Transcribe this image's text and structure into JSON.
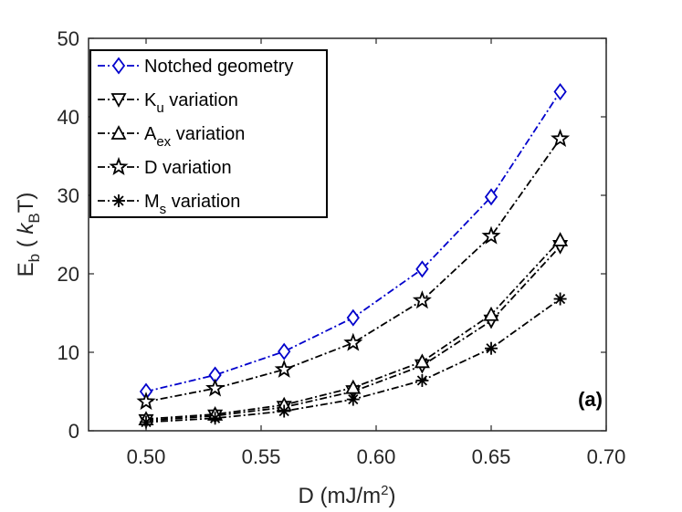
{
  "chart_data": {
    "type": "line",
    "x": [
      0.5,
      0.53,
      0.56,
      0.59,
      0.62,
      0.65,
      0.68
    ],
    "xlim": [
      0.475,
      0.7
    ],
    "ylim": [
      0,
      50
    ],
    "xticks": [
      "0.50",
      "0.55",
      "0.60",
      "0.65",
      "0.70"
    ],
    "xtick_values": [
      0.5,
      0.55,
      0.6,
      0.65,
      0.7
    ],
    "yticks": [
      "0",
      "10",
      "20",
      "30",
      "40",
      "50"
    ],
    "ytick_values": [
      0,
      10,
      20,
      30,
      40,
      50
    ],
    "xlabel": {
      "main": "D (mJ/m",
      "sup": "2",
      "end": ")"
    },
    "ylabel": {
      "main": "E",
      "sub": "b",
      "mid": " ( ",
      "italic": "k",
      "sub2": "B",
      "end": "T)"
    },
    "grid": false,
    "legend_position": "top-left",
    "panel_label": "(a)",
    "series": [
      {
        "name": "Notched geometry",
        "label_main": "Notched geometry",
        "label_sub": "",
        "label_rest": "",
        "marker": "diamond",
        "color": "#0000cc",
        "values": [
          5.0,
          7.1,
          10.1,
          14.4,
          20.6,
          29.8,
          43.2
        ]
      },
      {
        "name": "K_u variation",
        "label_main": "K",
        "label_sub": "u",
        "label_rest": " variation",
        "marker": "triangle-down",
        "color": "#000000",
        "values": [
          1.3,
          1.9,
          3.0,
          5.0,
          8.3,
          14.0,
          23.5
        ]
      },
      {
        "name": "A_ex variation",
        "label_main": "A",
        "label_sub": "ex",
        "label_rest": " variation",
        "marker": "triangle-up",
        "color": "#000000",
        "values": [
          1.5,
          2.1,
          3.3,
          5.5,
          8.8,
          14.8,
          24.3
        ]
      },
      {
        "name": "D variation",
        "label_main": "D variation",
        "label_sub": "",
        "label_rest": "",
        "marker": "star",
        "color": "#000000",
        "values": [
          3.7,
          5.4,
          7.8,
          11.2,
          16.6,
          24.8,
          37.2
        ]
      },
      {
        "name": "M_s variation",
        "label_main": "M",
        "label_sub": "s",
        "label_rest": " variation",
        "marker": "asterisk",
        "color": "#000000",
        "values": [
          1.1,
          1.6,
          2.5,
          4.0,
          6.4,
          10.5,
          16.8
        ]
      }
    ]
  }
}
